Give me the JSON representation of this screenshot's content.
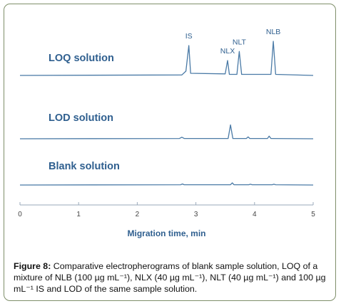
{
  "chart_data": {
    "type": "line",
    "xlabel": "Migration time, min",
    "xlim": [
      0,
      5
    ],
    "xticks": [
      0,
      1,
      2,
      3,
      4,
      5
    ],
    "grid": false,
    "colors": {
      "trace": "#4a7aa6",
      "label": "#2f5f8f"
    },
    "series": [
      {
        "name": "LOQ solution",
        "points": [
          [
            0,
            0
          ],
          [
            2.76,
            1
          ],
          [
            2.83,
            8
          ],
          [
            2.88,
            56
          ],
          [
            2.91,
            4
          ],
          [
            3.5,
            3
          ],
          [
            3.54,
            28
          ],
          [
            3.57,
            2
          ],
          [
            3.7,
            2
          ],
          [
            3.74,
            45
          ],
          [
            3.78,
            2
          ],
          [
            4.28,
            2
          ],
          [
            4.32,
            64
          ],
          [
            4.36,
            2
          ],
          [
            5,
            0
          ]
        ],
        "peak_labels": [
          {
            "text": "IS",
            "x": 2.88
          },
          {
            "text": "NLX",
            "x": 3.54
          },
          {
            "text": "NLT",
            "x": 3.74
          },
          {
            "text": "NLB",
            "x": 4.32
          }
        ]
      },
      {
        "name": "LOD solution",
        "points": [
          [
            0,
            0
          ],
          [
            2.72,
            0.5
          ],
          [
            2.76,
            3
          ],
          [
            2.8,
            0.5
          ],
          [
            3.55,
            0.5
          ],
          [
            3.59,
            26
          ],
          [
            3.63,
            0.5
          ],
          [
            3.86,
            0.5
          ],
          [
            3.89,
            3.5
          ],
          [
            3.92,
            0.5
          ],
          [
            4.22,
            0.5
          ],
          [
            4.25,
            5
          ],
          [
            4.28,
            0.5
          ],
          [
            5,
            0
          ]
        ]
      },
      {
        "name": "Blank solution",
        "points": [
          [
            0,
            0
          ],
          [
            2.74,
            0.5
          ],
          [
            2.77,
            2
          ],
          [
            2.8,
            0.5
          ],
          [
            3.59,
            0.5
          ],
          [
            3.62,
            4
          ],
          [
            3.65,
            0.5
          ],
          [
            3.9,
            0.5
          ],
          [
            3.93,
            1.5
          ],
          [
            3.96,
            0.5
          ],
          [
            4.3,
            0.5
          ],
          [
            4.33,
            1.5
          ],
          [
            4.36,
            0.5
          ],
          [
            5,
            0
          ]
        ]
      }
    ]
  },
  "caption": {
    "label": "Figure 8:",
    "text": "Comparative electropherograms of blank sample solution, LOQ of a mixture of NLB (100 µg mL⁻¹), NLX (40 µg mL⁻¹), NLT (40 µg mL⁻¹) and 100 µg mL⁻¹ IS and LOD of the same sample solution."
  }
}
